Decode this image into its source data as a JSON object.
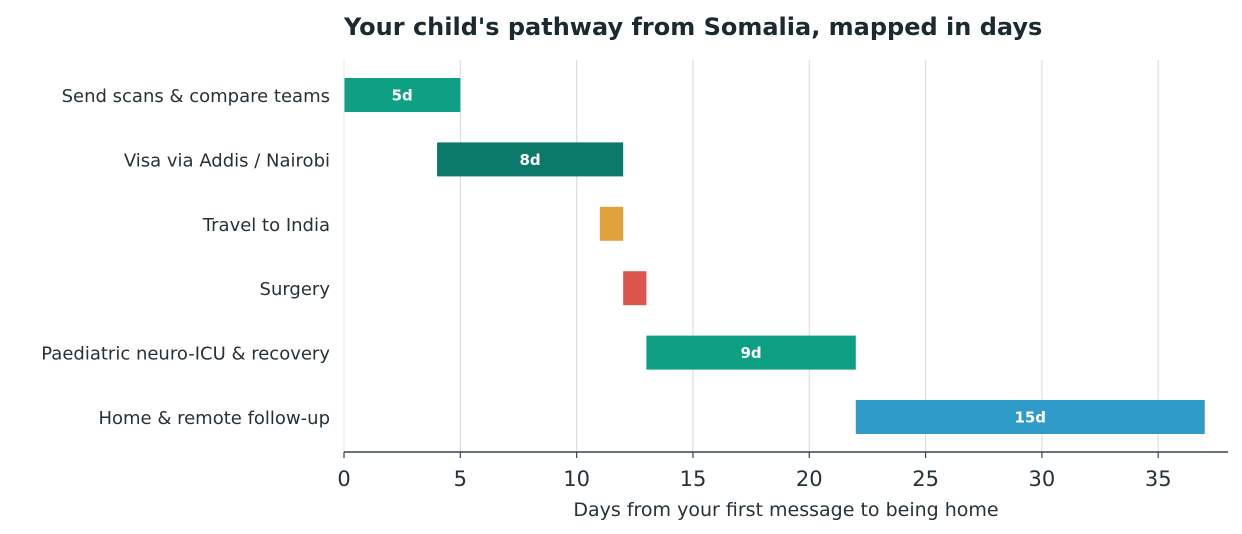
{
  "chart_data": {
    "type": "bar",
    "orientation": "horizontal-gantt",
    "title": "Your child's pathway from Somalia, mapped in days",
    "xlabel": "Days from your first message to being home",
    "ylabel": "",
    "xlim": [
      0,
      38
    ],
    "xticks": [
      0,
      5,
      10,
      15,
      20,
      25,
      30,
      35
    ],
    "grid": "vertical",
    "tasks": [
      {
        "name": "Send scans & compare teams",
        "start": 0,
        "end": 5,
        "label": "5d",
        "color": "#0ea085"
      },
      {
        "name": "Visa via Addis / Nairobi",
        "start": 4,
        "end": 12,
        "label": "8d",
        "color": "#0b7a6a"
      },
      {
        "name": "Travel to India",
        "start": 11,
        "end": 12,
        "label": "",
        "color": "#e1a23b"
      },
      {
        "name": "Surgery",
        "start": 12,
        "end": 13,
        "label": "",
        "color": "#dc554d"
      },
      {
        "name": "Paediatric neuro-ICU & recovery",
        "start": 13,
        "end": 22,
        "label": "9d",
        "color": "#0ea085"
      },
      {
        "name": "Home & remote follow-up",
        "start": 22,
        "end": 37,
        "label": "15d",
        "color": "#2f9bc8"
      }
    ]
  }
}
